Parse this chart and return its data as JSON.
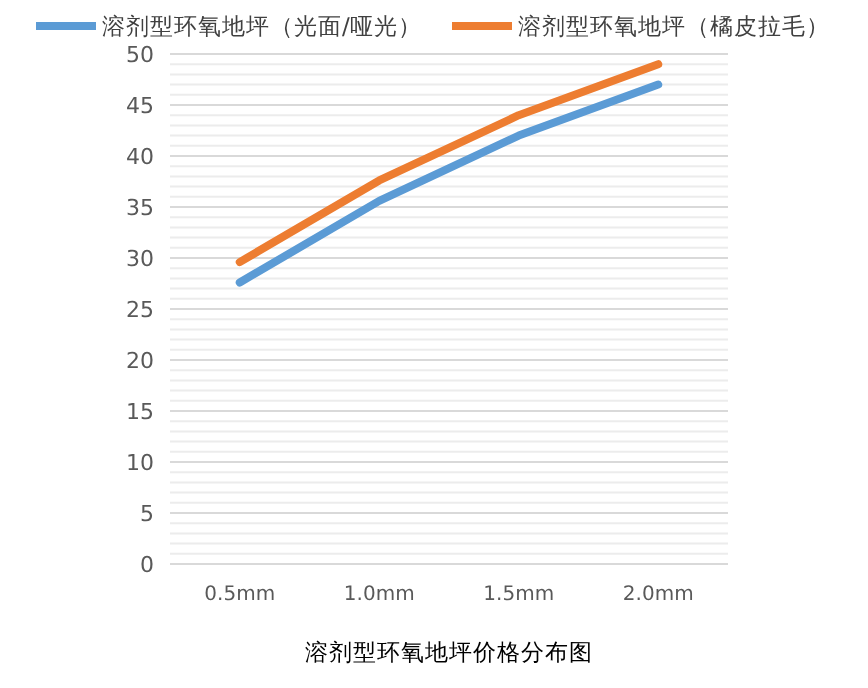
{
  "chart_data": {
    "type": "line",
    "title": "溶剂型环氧地坪价格分布图",
    "categories": [
      "0.5mm",
      "1.0mm",
      "1.5mm",
      "2.0mm"
    ],
    "series": [
      {
        "name": "溶剂型环氧地坪（光面/哑光）",
        "color": "#5b9bd5",
        "values": [
          27.6,
          35.6,
          42,
          47
        ]
      },
      {
        "name": "溶剂型环氧地坪（橘皮拉毛）",
        "color": "#ed7d31",
        "values": [
          29.6,
          37.6,
          44,
          49
        ]
      }
    ],
    "ylim": [
      0,
      50
    ],
    "yticks": [
      0,
      {
        "value": 1,
        "label": null
      },
      {
        "value": 2,
        "label": null
      },
      {
        "value": 3,
        "label": null
      },
      {
        "value": 4,
        "label": null
      },
      5,
      {
        "value": 6,
        "label": null
      },
      {
        "value": 7,
        "label": null
      },
      {
        "value": 8,
        "label": null
      },
      {
        "value": 9,
        "label": null
      },
      10,
      {
        "value": 11,
        "label": null
      },
      {
        "value": 12,
        "label": null
      },
      {
        "value": 13,
        "label": null
      },
      {
        "value": 14,
        "label": null
      },
      15,
      {
        "value": 16,
        "label": null
      },
      {
        "value": 17,
        "label": null
      },
      {
        "value": 18,
        "label": null
      },
      {
        "value": 19,
        "label": null
      },
      20,
      {
        "value": 21,
        "label": null
      },
      {
        "value": 22,
        "label": null
      },
      {
        "value": 23,
        "label": null
      },
      {
        "value": 24,
        "label": null
      },
      25,
      {
        "value": 26,
        "label": null
      },
      {
        "value": 27,
        "label": null
      },
      {
        "value": 28,
        "label": null
      },
      {
        "value": 29,
        "label": null
      },
      30,
      {
        "value": 31,
        "label": null
      },
      {
        "value": 32,
        "label": null
      },
      {
        "value": 33,
        "label": null
      },
      {
        "value": 34,
        "label": null
      },
      35,
      {
        "value": 36,
        "label": null
      },
      {
        "value": 37,
        "label": null
      },
      {
        "value": 38,
        "label": null
      },
      {
        "value": 39,
        "label": null
      },
      40,
      {
        "value": 41,
        "label": null
      },
      {
        "value": 42,
        "label": null
      },
      {
        "value": 43,
        "label": null
      },
      {
        "value": 44,
        "label": null
      },
      45,
      {
        "value": 46,
        "label": null
      },
      {
        "value": 47,
        "label": null
      },
      {
        "value": 48,
        "label": null
      },
      {
        "value": 49,
        "label": null
      },
      50
    ],
    "grid": "y",
    "legend": "top",
    "marker": "none",
    "line_style": "solid"
  }
}
